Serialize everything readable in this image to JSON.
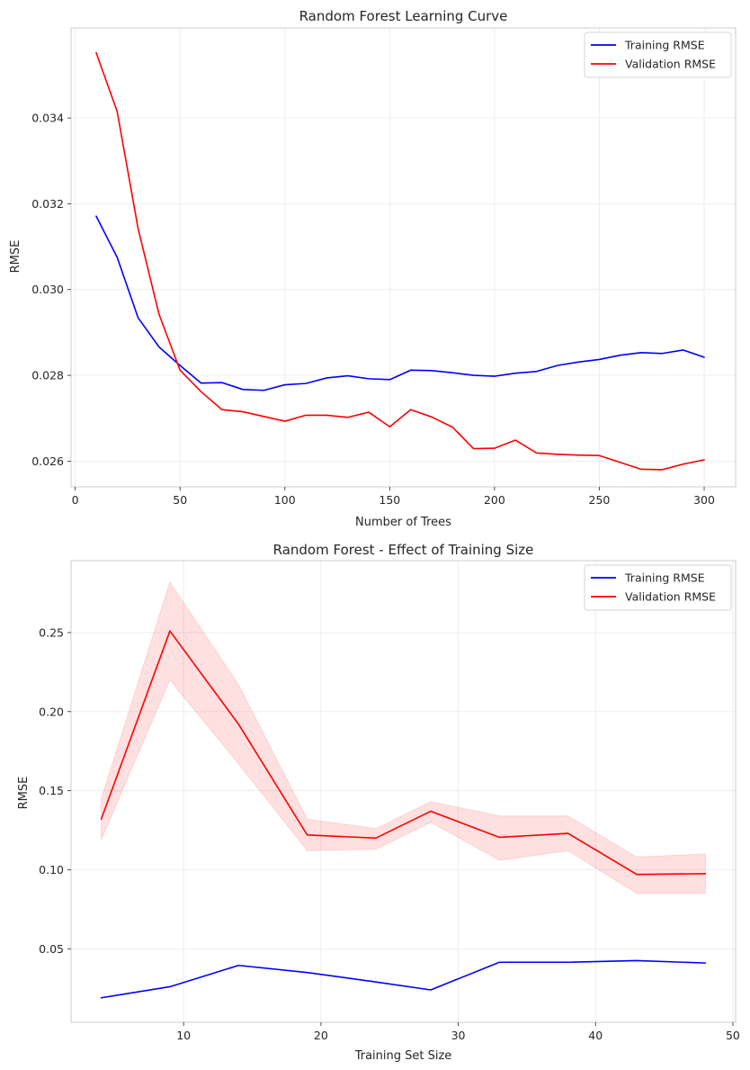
{
  "chart_data": [
    {
      "type": "line",
      "title": "Random Forest Learning Curve",
      "xlabel": "Number of Trees",
      "ylabel": "RMSE",
      "xlim": [
        -2,
        315
      ],
      "ylim": [
        0.0254,
        0.0361
      ],
      "xticks": [
        0,
        50,
        100,
        150,
        200,
        250,
        300
      ],
      "yticks": [
        0.026,
        0.028,
        0.03,
        0.032,
        0.034
      ],
      "xtick_labels": [
        "0",
        "50",
        "100",
        "150",
        "200",
        "250",
        "300"
      ],
      "ytick_labels": [
        "0.026",
        "0.028",
        "0.030",
        "0.032",
        "0.034"
      ],
      "grid": true,
      "legend_position": "top-right",
      "x": [
        10,
        20,
        30,
        40,
        50,
        60,
        70,
        80,
        90,
        100,
        110,
        120,
        130,
        140,
        150,
        160,
        170,
        180,
        190,
        200,
        210,
        220,
        230,
        240,
        250,
        260,
        270,
        280,
        290,
        300
      ],
      "series": [
        {
          "name": "Training RMSE",
          "color": "#0000ff",
          "values": [
            0.03171,
            0.03075,
            0.02934,
            0.02866,
            0.02823,
            0.02782,
            0.02783,
            0.02767,
            0.02765,
            0.02778,
            0.02781,
            0.02794,
            0.02799,
            0.02792,
            0.0279,
            0.02812,
            0.02811,
            0.02806,
            0.028,
            0.02798,
            0.02805,
            0.02809,
            0.02823,
            0.02831,
            0.02837,
            0.02847,
            0.02853,
            0.02851,
            0.02859,
            0.02842
          ]
        },
        {
          "name": "Validation RMSE",
          "color": "#ff0000",
          "values": [
            0.03552,
            0.03415,
            0.03142,
            0.02942,
            0.02812,
            0.02762,
            0.0272,
            0.02715,
            0.02704,
            0.02693,
            0.02707,
            0.02707,
            0.02702,
            0.02714,
            0.0268,
            0.0272,
            0.02703,
            0.02679,
            0.02629,
            0.0263,
            0.02649,
            0.02619,
            0.02616,
            0.02614,
            0.02613,
            0.02597,
            0.02581,
            0.0258,
            0.02593,
            0.02603
          ]
        }
      ]
    },
    {
      "type": "line",
      "title": "Random Forest - Effect of Training Size",
      "xlabel": "Training Set Size",
      "ylabel": "RMSE",
      "xlim": [
        1.8,
        50.2
      ],
      "ylim": [
        0.0035,
        0.2955
      ],
      "xticks": [
        10,
        20,
        30,
        40,
        50
      ],
      "yticks": [
        0.05,
        0.1,
        0.15,
        0.2,
        0.25
      ],
      "xtick_labels": [
        "10",
        "20",
        "30",
        "40",
        "50"
      ],
      "ytick_labels": [
        "0.05",
        "0.10",
        "0.15",
        "0.20",
        "0.25"
      ],
      "grid": true,
      "legend_position": "top-right",
      "x": [
        4,
        9,
        14,
        19,
        24,
        28,
        33,
        38,
        43,
        48
      ],
      "series": [
        {
          "name": "Training RMSE",
          "color": "#0000ff",
          "values": [
            0.019,
            0.026,
            0.0395,
            0.035,
            0.029,
            0.024,
            0.0415,
            0.0415,
            0.0425,
            0.041
          ]
        },
        {
          "name": "Validation RMSE",
          "color": "#ff0000",
          "values": [
            0.132,
            0.251,
            0.192,
            0.122,
            0.12,
            0.137,
            0.1205,
            0.123,
            0.097,
            0.0975
          ],
          "band_upper": [
            0.145,
            0.282,
            0.217,
            0.132,
            0.126,
            0.143,
            0.134,
            0.134,
            0.108,
            0.11
          ],
          "band_lower": [
            0.119,
            0.22,
            0.167,
            0.112,
            0.113,
            0.13,
            0.106,
            0.112,
            0.085,
            0.085
          ],
          "band_color": "#ff0000"
        }
      ]
    }
  ]
}
